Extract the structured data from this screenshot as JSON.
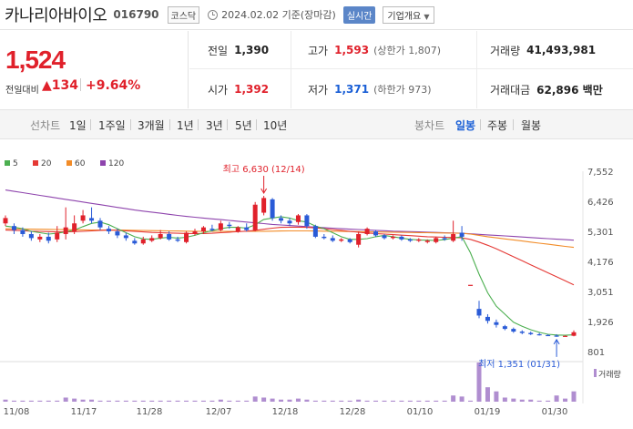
{
  "header": {
    "company": "카나리아바이오",
    "code": "016790",
    "market_badge": "코스닥",
    "date": "2024.02.02",
    "date_suffix": "기준(장마감)",
    "realtime_badge": "실시간",
    "info_badge": "기업개요"
  },
  "price": {
    "current": "1,524",
    "change_label": "전일대비",
    "change_value": "134",
    "change_pct": "+9.64%"
  },
  "stats": {
    "prev_label": "전일",
    "prev": "1,390",
    "high_label": "고가",
    "high": "1,593",
    "high_limit": "(상한가 1,807)",
    "volume_label": "거래량",
    "volume": "41,493,981",
    "open_label": "시가",
    "open": "1,392",
    "low_label": "저가",
    "low": "1,371",
    "low_limit": "(하한가 973)",
    "amount_label": "거래대금",
    "amount": "62,896 백만"
  },
  "tabs": {
    "line_head": "선차트",
    "periods": [
      "1일",
      "1주일",
      "3개월",
      "1년",
      "3년",
      "5년",
      "10년"
    ],
    "candle_head": "봉차트",
    "candles": [
      "일봉",
      "주봉",
      "월봉"
    ],
    "active_candle": "일봉"
  },
  "chart_data": {
    "type": "candlestick",
    "legend": [
      {
        "name": "5",
        "color": "#4caf50"
      },
      {
        "name": "20",
        "color": "#e53935"
      },
      {
        "name": "60",
        "color": "#f28c28"
      },
      {
        "name": "120",
        "color": "#8e44ad"
      }
    ],
    "y_ticks": [
      "7,552",
      "6,426",
      "5,301",
      "4,176",
      "3,051",
      "1,926",
      "801"
    ],
    "x_ticks": [
      "11/08",
      "11/17",
      "11/28",
      "12/07",
      "12/18",
      "12/28",
      "01/10",
      "01/19",
      "01/30"
    ],
    "ylim": [
      801,
      7552
    ],
    "high_annotation": "최고 6,630 (12/14)",
    "low_annotation": "최저 1,351 (01/31)",
    "volume_label": "거래량",
    "candles": [
      {
        "o": 5600,
        "c": 5800,
        "h": 5900,
        "l": 5500
      },
      {
        "o": 5500,
        "c": 5350,
        "h": 5600,
        "l": 5200
      },
      {
        "o": 5350,
        "c": 5200,
        "h": 5450,
        "l": 5100
      },
      {
        "o": 5200,
        "c": 5050,
        "h": 5300,
        "l": 4950
      },
      {
        "o": 5000,
        "c": 5100,
        "h": 5200,
        "l": 4900
      },
      {
        "o": 5100,
        "c": 4950,
        "h": 5250,
        "l": 4850
      },
      {
        "o": 5000,
        "c": 5250,
        "h": 5500,
        "l": 4900
      },
      {
        "o": 5200,
        "c": 5450,
        "h": 6200,
        "l": 5000
      },
      {
        "o": 5300,
        "c": 5600,
        "h": 5900,
        "l": 5200
      },
      {
        "o": 5700,
        "c": 5900,
        "h": 6100,
        "l": 5600
      },
      {
        "o": 5800,
        "c": 5700,
        "h": 6200,
        "l": 5600
      },
      {
        "o": 5700,
        "c": 5450,
        "h": 5800,
        "l": 5350
      },
      {
        "o": 5400,
        "c": 5300,
        "h": 5500,
        "l": 5200
      },
      {
        "o": 5300,
        "c": 5150,
        "h": 5400,
        "l": 5050
      },
      {
        "o": 5150,
        "c": 5050,
        "h": 5250,
        "l": 4950
      },
      {
        "o": 4950,
        "c": 4850,
        "h": 5050,
        "l": 4800
      },
      {
        "o": 4850,
        "c": 5000,
        "h": 5100,
        "l": 4800
      },
      {
        "o": 4950,
        "c": 5050,
        "h": 5150,
        "l": 4900
      },
      {
        "o": 5050,
        "c": 5200,
        "h": 5350,
        "l": 5000
      },
      {
        "o": 5200,
        "c": 5000,
        "h": 5300,
        "l": 4950
      },
      {
        "o": 5000,
        "c": 4950,
        "h": 5100,
        "l": 4900
      },
      {
        "o": 4900,
        "c": 5250,
        "h": 5300,
        "l": 4850
      },
      {
        "o": 5200,
        "c": 5300,
        "h": 5400,
        "l": 5150
      },
      {
        "o": 5300,
        "c": 5450,
        "h": 5500,
        "l": 5200
      },
      {
        "o": 5400,
        "c": 5350,
        "h": 5550,
        "l": 5300
      },
      {
        "o": 5350,
        "c": 5600,
        "h": 5700,
        "l": 5300
      },
      {
        "o": 5550,
        "c": 5500,
        "h": 5650,
        "l": 5400
      },
      {
        "o": 5300,
        "c": 5450,
        "h": 5500,
        "l": 5250
      },
      {
        "o": 5450,
        "c": 5350,
        "h": 5600,
        "l": 5300
      },
      {
        "o": 5350,
        "c": 6300,
        "h": 6400,
        "l": 5300
      },
      {
        "o": 6000,
        "c": 6550,
        "h": 6630,
        "l": 5900
      },
      {
        "o": 6500,
        "c": 5800,
        "h": 6550,
        "l": 5700
      },
      {
        "o": 5800,
        "c": 5700,
        "h": 5900,
        "l": 5600
      },
      {
        "o": 5700,
        "c": 5600,
        "h": 5800,
        "l": 5500
      },
      {
        "o": 5650,
        "c": 5900,
        "h": 5950,
        "l": 5550
      },
      {
        "o": 5900,
        "c": 5500,
        "h": 5950,
        "l": 5400
      },
      {
        "o": 5500,
        "c": 5100,
        "h": 5550,
        "l": 5050
      },
      {
        "o": 5100,
        "c": 5050,
        "h": 5200,
        "l": 5000
      },
      {
        "o": 5050,
        "c": 4950,
        "h": 5150,
        "l": 4900
      },
      {
        "o": 4950,
        "c": 5000,
        "h": 5050,
        "l": 4900
      },
      {
        "o": 5000,
        "c": 4900,
        "h": 5050,
        "l": 4850
      },
      {
        "o": 4800,
        "c": 5200,
        "h": 5300,
        "l": 4700
      },
      {
        "o": 5200,
        "c": 5400,
        "h": 5450,
        "l": 5150
      },
      {
        "o": 5300,
        "c": 5150,
        "h": 5350,
        "l": 5100
      },
      {
        "o": 5150,
        "c": 5050,
        "h": 5200,
        "l": 5000
      },
      {
        "o": 5050,
        "c": 5100,
        "h": 5150,
        "l": 5000
      },
      {
        "o": 5100,
        "c": 5000,
        "h": 5150,
        "l": 4950
      },
      {
        "o": 5000,
        "c": 4950,
        "h": 5050,
        "l": 4900
      },
      {
        "o": 4950,
        "c": 5000,
        "h": 5050,
        "l": 4900
      },
      {
        "o": 4900,
        "c": 4950,
        "h": 5000,
        "l": 4850
      },
      {
        "o": 4900,
        "c": 5050,
        "h": 5100,
        "l": 4850
      },
      {
        "o": 5050,
        "c": 5000,
        "h": 5150,
        "l": 4950
      },
      {
        "o": 4950,
        "c": 5200,
        "h": 5700,
        "l": 4900
      },
      {
        "o": 5250,
        "c": 5100,
        "h": 5500,
        "l": 4950
      },
      {
        "o": 3300,
        "c": 3300,
        "h": 3300,
        "l": 3300
      },
      {
        "o": 2400,
        "c": 2150,
        "h": 2700,
        "l": 2050
      },
      {
        "o": 2100,
        "c": 1950,
        "h": 2200,
        "l": 1850
      },
      {
        "o": 1900,
        "c": 1800,
        "h": 2000,
        "l": 1700
      },
      {
        "o": 1750,
        "c": 1650,
        "h": 1800,
        "l": 1600
      },
      {
        "o": 1650,
        "c": 1550,
        "h": 1700,
        "l": 1500
      },
      {
        "o": 1550,
        "c": 1500,
        "h": 1600,
        "l": 1450
      },
      {
        "o": 1500,
        "c": 1450,
        "h": 1550,
        "l": 1420
      },
      {
        "o": 1450,
        "c": 1420,
        "h": 1500,
        "l": 1400
      },
      {
        "o": 1420,
        "c": 1400,
        "h": 1450,
        "l": 1380
      },
      {
        "o": 1400,
        "c": 1380,
        "h": 1450,
        "l": 1351
      },
      {
        "o": 1390,
        "c": 1390,
        "h": 1400,
        "l": 1380
      },
      {
        "o": 1392,
        "c": 1524,
        "h": 1593,
        "l": 1371
      }
    ],
    "ma5": [
      5500,
      5460,
      5400,
      5300,
      5250,
      5200,
      5230,
      5280,
      5350,
      5480,
      5600,
      5650,
      5550,
      5400,
      5250,
      5100,
      5020,
      5000,
      5050,
      5080,
      5050,
      5080,
      5150,
      5250,
      5330,
      5400,
      5450,
      5450,
      5420,
      5550,
      5750,
      5800,
      5850,
      5800,
      5700,
      5650,
      5500,
      5400,
      5250,
      5100,
      5000,
      5000,
      5030,
      5100,
      5150,
      5100,
      5050,
      5000,
      4980,
      4970,
      4960,
      4990,
      5050,
      5100,
      4500,
      3700,
      3000,
      2500,
      2200,
      1900,
      1750,
      1620,
      1520,
      1450,
      1420,
      1410,
      1430
    ],
    "ma20": [
      5350,
      5340,
      5330,
      5310,
      5300,
      5290,
      5280,
      5280,
      5290,
      5300,
      5320,
      5340,
      5350,
      5340,
      5320,
      5300,
      5280,
      5260,
      5250,
      5240,
      5230,
      5220,
      5220,
      5220,
      5230,
      5250,
      5270,
      5290,
      5310,
      5340,
      5380,
      5420,
      5450,
      5460,
      5460,
      5450,
      5430,
      5400,
      5370,
      5340,
      5300,
      5270,
      5240,
      5220,
      5200,
      5180,
      5160,
      5140,
      5120,
      5100,
      5090,
      5080,
      5070,
      5060,
      5000,
      4900,
      4780,
      4650,
      4500,
      4350,
      4200,
      4050,
      3900,
      3750,
      3600,
      3450,
      3300
    ],
    "ma60": [
      5400,
      5395,
      5390,
      5385,
      5380,
      5375,
      5370,
      5365,
      5360,
      5355,
      5350,
      5350,
      5350,
      5350,
      5345,
      5340,
      5335,
      5330,
      5325,
      5320,
      5315,
      5310,
      5305,
      5300,
      5300,
      5300,
      5300,
      5300,
      5300,
      5300,
      5305,
      5310,
      5315,
      5320,
      5320,
      5320,
      5315,
      5310,
      5305,
      5300,
      5295,
      5290,
      5285,
      5280,
      5275,
      5270,
      5265,
      5260,
      5255,
      5250,
      5245,
      5240,
      5235,
      5230,
      5200,
      5150,
      5100,
      5060,
      5020,
      4980,
      4940,
      4900,
      4860,
      4820,
      4780,
      4740,
      4700
    ],
    "ma120": [
      6850,
      6800,
      6750,
      6700,
      6650,
      6600,
      6550,
      6500,
      6450,
      6400,
      6350,
      6300,
      6250,
      6200,
      6150,
      6100,
      6060,
      6020,
      5980,
      5940,
      5900,
      5860,
      5830,
      5800,
      5770,
      5740,
      5710,
      5680,
      5650,
      5620,
      5590,
      5560,
      5540,
      5520,
      5500,
      5480,
      5460,
      5440,
      5420,
      5400,
      5385,
      5370,
      5355,
      5340,
      5325,
      5310,
      5300,
      5290,
      5280,
      5270,
      5260,
      5250,
      5240,
      5230,
      5210,
      5190,
      5170,
      5150,
      5130,
      5110,
      5090,
      5070,
      5050,
      5030,
      5010,
      4990,
      4970
    ],
    "volumes": [
      2,
      1,
      1,
      1,
      1,
      1,
      1,
      4,
      3,
      2,
      2,
      1,
      1,
      1,
      1,
      1,
      1,
      1,
      1,
      1,
      1,
      1,
      1,
      1,
      1,
      2,
      1,
      1,
      1,
      5,
      4,
      3,
      2,
      2,
      3,
      2,
      1,
      1,
      1,
      1,
      1,
      2,
      1,
      1,
      1,
      1,
      1,
      1,
      1,
      1,
      1,
      1,
      6,
      5,
      1,
      38,
      14,
      10,
      4,
      3,
      2,
      2,
      1,
      1,
      6,
      3,
      10
    ]
  }
}
